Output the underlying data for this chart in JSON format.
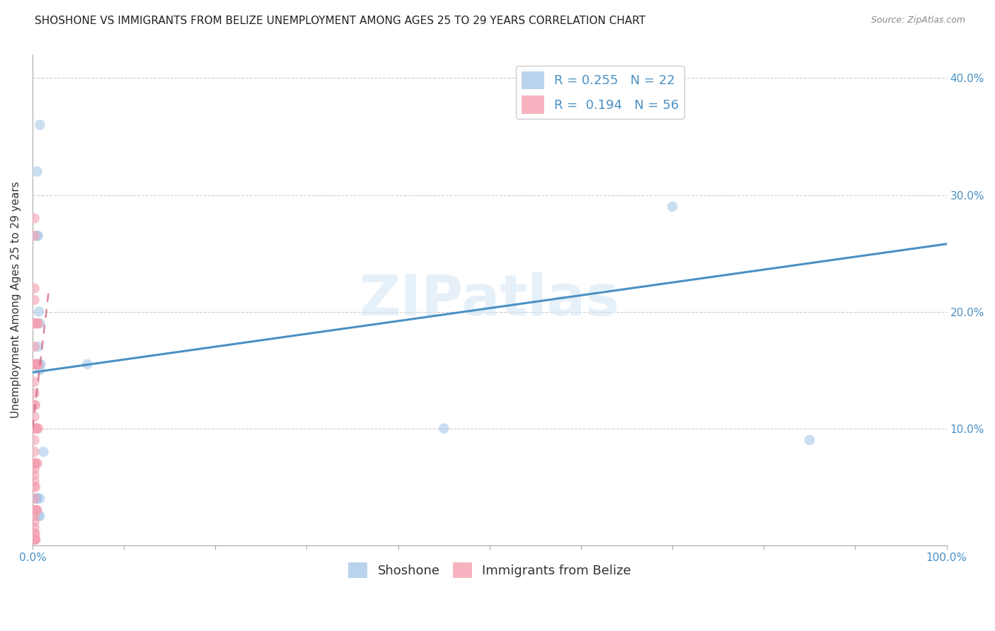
{
  "title": "SHOSHONE VS IMMIGRANTS FROM BELIZE UNEMPLOYMENT AMONG AGES 25 TO 29 YEARS CORRELATION CHART",
  "source": "Source: ZipAtlas.com",
  "ylabel": "Unemployment Among Ages 25 to 29 years",
  "watermark": "ZIPatlas",
  "shoshone_R": 0.255,
  "shoshone_N": 22,
  "belize_R": 0.194,
  "belize_N": 56,
  "shoshone_color": "#a8c8e8",
  "belize_color": "#f4a0b0",
  "shoshone_line_color": "#4a90c4",
  "belize_line_color": "#d06080",
  "shoshone_points_x": [
    0.008,
    0.005,
    0.006,
    0.005,
    0.007,
    0.008,
    0.006,
    0.005,
    0.007,
    0.008,
    0.009,
    0.012,
    0.45,
    0.7,
    0.005,
    0.005,
    0.007,
    0.008,
    0.005,
    0.06,
    0.85,
    0.008
  ],
  "shoshone_points_y": [
    0.36,
    0.32,
    0.265,
    0.265,
    0.2,
    0.19,
    0.17,
    0.155,
    0.155,
    0.15,
    0.155,
    0.08,
    0.1,
    0.29,
    0.04,
    0.04,
    0.025,
    0.025,
    0.04,
    0.155,
    0.09,
    0.04
  ],
  "belize_points_x": [
    0.002,
    0.002,
    0.002,
    0.002,
    0.002,
    0.002,
    0.002,
    0.002,
    0.002,
    0.002,
    0.002,
    0.002,
    0.002,
    0.002,
    0.002,
    0.002,
    0.002,
    0.002,
    0.002,
    0.002,
    0.002,
    0.002,
    0.002,
    0.002,
    0.002,
    0.002,
    0.002,
    0.002,
    0.002,
    0.002,
    0.002,
    0.002,
    0.003,
    0.003,
    0.003,
    0.003,
    0.003,
    0.003,
    0.003,
    0.003,
    0.003,
    0.003,
    0.003,
    0.003,
    0.004,
    0.004,
    0.004,
    0.004,
    0.005,
    0.005,
    0.005,
    0.005,
    0.005,
    0.006,
    0.006,
    0.006
  ],
  "belize_points_y": [
    0.28,
    0.265,
    0.22,
    0.21,
    0.19,
    0.17,
    0.155,
    0.14,
    0.13,
    0.12,
    0.11,
    0.1,
    0.09,
    0.08,
    0.07,
    0.065,
    0.06,
    0.055,
    0.05,
    0.04,
    0.03,
    0.025,
    0.02,
    0.015,
    0.01,
    0.005,
    0.005,
    0.005,
    0.005,
    0.005,
    0.005,
    0.005,
    0.19,
    0.155,
    0.12,
    0.1,
    0.07,
    0.05,
    0.03,
    0.01,
    0.005,
    0.005,
    0.005,
    0.005,
    0.155,
    0.1,
    0.07,
    0.03,
    0.19,
    0.155,
    0.1,
    0.07,
    0.03,
    0.19,
    0.155,
    0.1
  ],
  "xlim": [
    0.0,
    1.0
  ],
  "ylim": [
    0.0,
    0.42
  ],
  "xticks": [
    0.0,
    0.1,
    0.2,
    0.3,
    0.4,
    0.5,
    0.6,
    0.7,
    0.8,
    0.9,
    1.0
  ],
  "yticks": [
    0.0,
    0.1,
    0.2,
    0.3,
    0.4
  ],
  "right_yticklabels": [
    "",
    "10.0%",
    "20.0%",
    "30.0%",
    "40.0%"
  ],
  "grid_color": "#cccccc",
  "background_color": "#ffffff",
  "title_fontsize": 11,
  "axis_label_fontsize": 11,
  "tick_fontsize": 11,
  "legend_fontsize": 13,
  "shoshone_line_x": [
    0.0,
    1.0
  ],
  "shoshone_line_y": [
    0.148,
    0.258
  ],
  "belize_line_x": [
    0.0,
    0.018
  ],
  "belize_line_y": [
    0.1,
    0.22
  ],
  "marker_size": 110,
  "tick_color": "#4a90c4"
}
